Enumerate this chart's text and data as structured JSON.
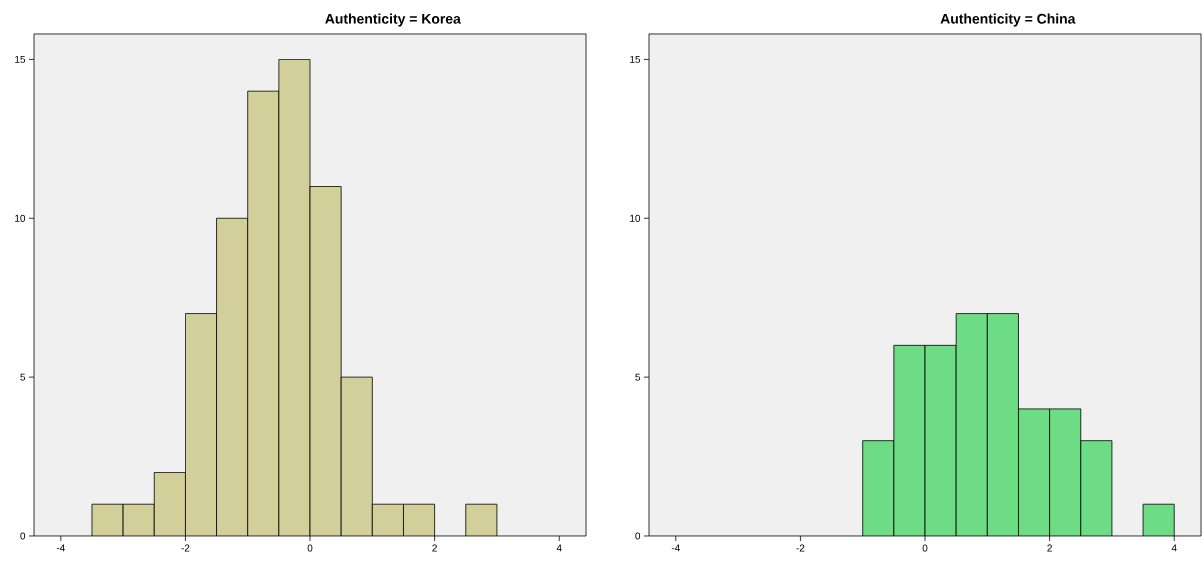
{
  "chart_data": [
    {
      "type": "histogram",
      "title": "Authenticity = Korea",
      "bins": [
        -3.5,
        -3,
        -2.5,
        -2,
        -1.5,
        -1,
        -0.5,
        0,
        0.5,
        1,
        1.5,
        2,
        2.5,
        3
      ],
      "values": [
        1,
        1,
        2,
        7,
        10,
        14,
        15,
        11,
        5,
        1,
        1,
        0,
        1
      ],
      "color": "#d3cf9b",
      "xlim": [
        -4.43,
        4.43
      ],
      "ylim": [
        0,
        15.8
      ],
      "xticks": [
        -4,
        -2,
        0,
        2,
        4
      ],
      "yticks": [
        0,
        5,
        10,
        15
      ]
    },
    {
      "type": "histogram",
      "title": "Authenticity = China",
      "bins": [
        -1,
        -0.5,
        0,
        0.5,
        1,
        1.5,
        2,
        2.5,
        3,
        3.5,
        4
      ],
      "values": [
        3,
        6,
        6,
        7,
        7,
        4,
        4,
        3,
        0,
        1
      ],
      "color": "#6edc84",
      "xlim": [
        -4.43,
        4.43
      ],
      "ylim": [
        0,
        15.8
      ],
      "xticks": [
        -4,
        -2,
        0,
        2,
        4
      ],
      "yticks": [
        0,
        5,
        10,
        15
      ]
    }
  ]
}
